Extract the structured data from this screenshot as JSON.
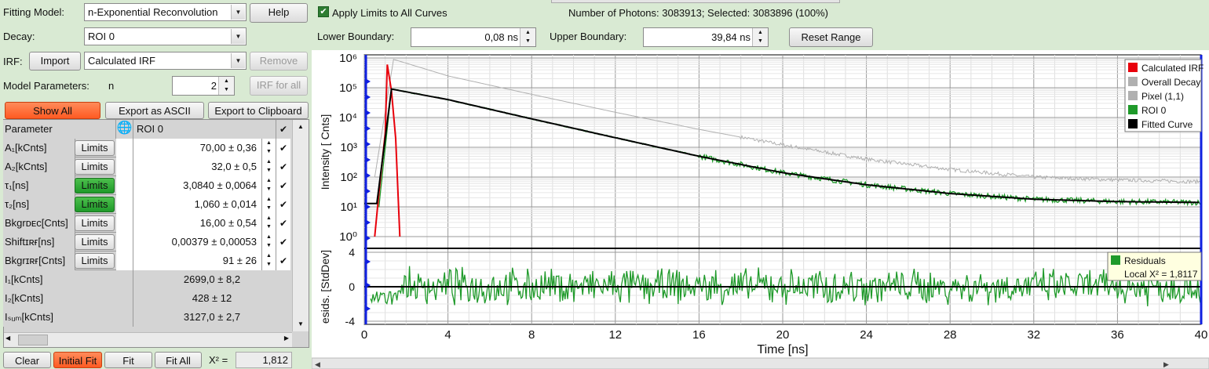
{
  "left": {
    "fitting_model_label": "Fitting Model:",
    "fitting_model_value": "n-Exponential Reconvolution",
    "help_label": "Help",
    "decay_label": "Decay:",
    "decay_value": "ROI 0",
    "irf_label": "IRF:",
    "import_label": "Import",
    "irf_value": "Calculated IRF",
    "remove_label": "Remove",
    "model_params_label": "Model Parameters:",
    "n_label": "n",
    "n_value": "2",
    "irf_for_all_label": "IRF for all",
    "show_all_label": "Show All",
    "export_ascii_label": "Export as ASCII",
    "export_clipboard_label": "Export to Clipboard",
    "table_header_param": "Parameter",
    "table_header_roi": "ROI 0",
    "limits_label": "Limits",
    "params": [
      {
        "name": "A₁[kCnts]",
        "value": "70,00 ± 0,36",
        "limits_active": false
      },
      {
        "name": "A₂[kCnts]",
        "value": "32,0 ± 0,5",
        "limits_active": false
      },
      {
        "name": "τ₁[ns]",
        "value": "3,0840 ± 0,0064",
        "limits_active": true
      },
      {
        "name": "τ₂[ns]",
        "value": "1,060 ± 0,014",
        "limits_active": true
      },
      {
        "name": "Bkgrᴅᴇᴄ[Cnts]",
        "value": "16,00 ± 0,54",
        "limits_active": false
      },
      {
        "name": "Shiftɪʀғ[ns]",
        "value": "0,00379 ± 0,00053",
        "limits_active": false
      },
      {
        "name": "Bkgrɪʀғ[Cnts]",
        "value": "91 ± 26",
        "limits_active": false
      }
    ],
    "derived": [
      {
        "name": "I₁[kCnts]",
        "value": "2699,0 ± 8,2"
      },
      {
        "name": "I₂[kCnts]",
        "value": "428 ± 12"
      },
      {
        "name": "Iₛᵤₘ[kCnts]",
        "value": "3127,0 ± 2,7"
      }
    ],
    "clear_label": "Clear",
    "initial_fit_label": "Initial Fit",
    "fit_label": "Fit",
    "fit_all_label": "Fit All",
    "chi2_label": "X² =",
    "chi2_value": "1,812"
  },
  "top": {
    "apply_limits_label": "Apply Limits to All Curves",
    "photons_text": "Number of Photons: 3083913; Selected: 3083896 (100%)",
    "lower_boundary_label": "Lower Boundary:",
    "lower_boundary_value": "0,08 ns",
    "upper_boundary_label": "Upper Boundary:",
    "upper_boundary_value": "39,84 ns",
    "reset_range_label": "Reset Range"
  },
  "chart_data": {
    "type": "line",
    "xlabel": "Time [ns]",
    "ylabel_top": "Intensity [ Cnts]",
    "ylabel_bottom": "esids. [StdDev]",
    "x_ticks": [
      0,
      4,
      8,
      12,
      16,
      20,
      24,
      28,
      32,
      36,
      40
    ],
    "xlim": [
      0,
      40
    ],
    "y_top_scale": "log",
    "y_top_ticks": [
      "10⁰",
      "10¹",
      "10²",
      "10³",
      "10⁴",
      "10⁵",
      "10⁶"
    ],
    "y_bottom_ticks": [
      -4,
      0,
      4
    ],
    "legend_top": [
      "Calculated IRF",
      "Overall Decay",
      "Pixel (1,1)",
      "ROI 0",
      "Fitted Curve"
    ],
    "legend_bottom": [
      "Residuals",
      "Local X² = 1,8117"
    ],
    "series": [
      {
        "name": "Calculated IRF",
        "color": "#e8000b",
        "x": [
          0.5,
          0.7,
          1.0,
          1.1,
          1.3,
          1.5,
          1.7
        ],
        "y": [
          1,
          30,
          3000,
          600000,
          80000,
          2000,
          1
        ]
      },
      {
        "name": "Overall Decay",
        "color": "#b0b0b0",
        "x": [
          0,
          0.5,
          1.4,
          4,
          8,
          12,
          16,
          20,
          24,
          28,
          32,
          36,
          40
        ],
        "y": [
          100,
          100,
          900000,
          250000,
          60000,
          15000,
          4000,
          1200,
          400,
          180,
          100,
          80,
          70
        ]
      },
      {
        "name": "ROI 0",
        "color": "#1f9a2a",
        "x": [
          0.7,
          1.3,
          4,
          8,
          12,
          16,
          20,
          24,
          28,
          32,
          36,
          40
        ],
        "y": [
          10,
          90000,
          40000,
          9000,
          2100,
          500,
          140,
          55,
          28,
          18,
          15,
          14
        ]
      },
      {
        "name": "Fitted Curve",
        "color": "#000000",
        "x": [
          0,
          0.6,
          1.3,
          4,
          8,
          12,
          16,
          20,
          24,
          28,
          32,
          36,
          40
        ],
        "y": [
          13,
          13,
          90000,
          40000,
          9000,
          2100,
          500,
          140,
          55,
          28,
          18,
          15,
          14
        ]
      },
      {
        "name": "Residuals",
        "color": "#1f9a2a",
        "range": [
          -4,
          4
        ]
      }
    ],
    "colors": {
      "irf": "#e8000b",
      "decay": "#b0b0b0",
      "roi": "#1f9a2a",
      "fit": "#000000",
      "axis": "#1020e0"
    }
  }
}
